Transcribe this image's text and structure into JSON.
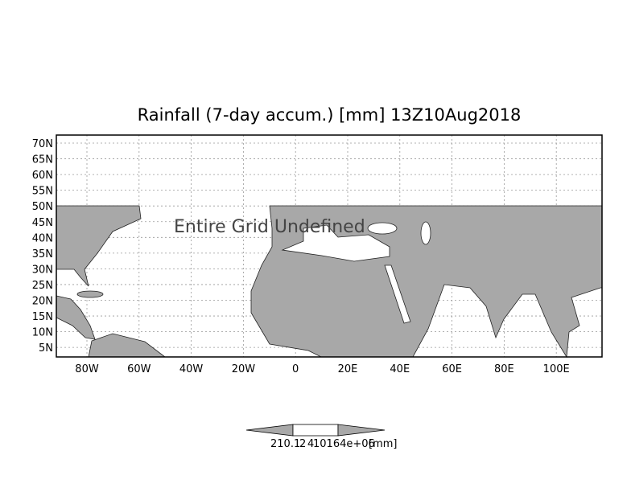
{
  "map": {
    "title": "Rainfall (7-day accum.) [mm] 13Z10Aug2018",
    "lat_labels": [
      "70N",
      "65N",
      "60N",
      "55N",
      "50N",
      "45N",
      "40N",
      "35N",
      "30N",
      "25N",
      "20N",
      "15N",
      "10N",
      "5N"
    ],
    "lon_labels": [
      "80W",
      "60W",
      "40W",
      "20W",
      "0",
      "20E",
      "40E",
      "60E",
      "80E",
      "100E"
    ],
    "overlay_text": "Entire Grid Undefined",
    "colorbar_labels": [
      "210.1",
      "2",
      "4",
      "10164e+06",
      "[mm]"
    ]
  }
}
